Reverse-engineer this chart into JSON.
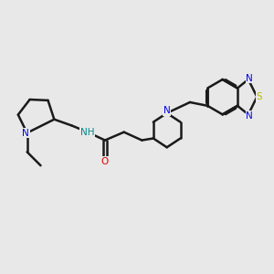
{
  "background_color": "#e8e8e8",
  "bond_color": "#1a1a1a",
  "bond_width": 1.8,
  "atom_colors": {
    "N": "#0000ee",
    "O": "#dd0000",
    "S": "#bbbb00",
    "NH": "#008888",
    "C": "#1a1a1a"
  },
  "font_size_atom": 7.5,
  "fig_bg": "#e8e8e8"
}
